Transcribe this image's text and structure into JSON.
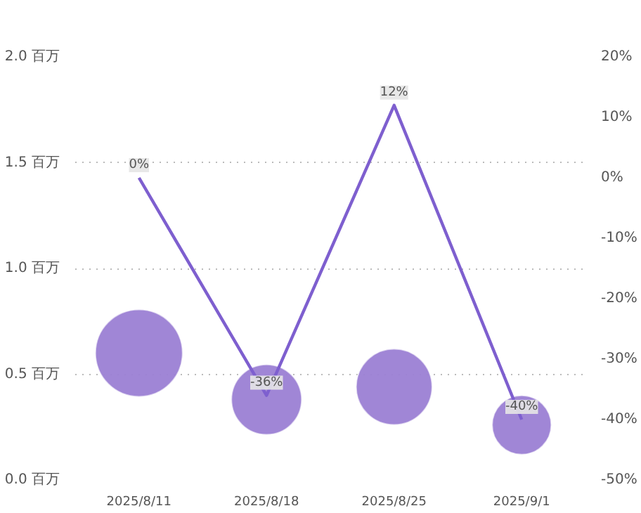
{
  "chart_data": {
    "type": "bubble",
    "categories": [
      "2025/8/11",
      "2025/8/18",
      "2025/8/25",
      "2025/9/1"
    ],
    "series": [
      {
        "color": "#9b7fd4",
        "values": [
          0.6,
          0.38,
          0.44,
          0.26
        ],
        "sizes": [
          1,
          0.65,
          0.76,
          0.46
        ]
      },
      {
        "type": "line",
        "axis": "y2",
        "color": "#7e5fcf",
        "values": [
          0,
          -36,
          12,
          -40
        ],
        "value_labels": [
          "0%",
          "-36%",
          "12%",
          "-40%"
        ]
      }
    ],
    "ylim": [
      0,
      2
    ],
    "yticks": [
      {
        "value": 0,
        "label": "0.0 百万"
      },
      {
        "value": 0.5,
        "label": "0.5 百万"
      },
      {
        "value": 1,
        "label": "1.0 百万"
      },
      {
        "value": 1.5,
        "label": "1.5 百万"
      },
      {
        "value": 2,
        "label": "2.0 百万"
      }
    ],
    "y2lim": [
      -50,
      20
    ],
    "y2ticks": [
      {
        "value": -50,
        "label": "-50%"
      },
      {
        "value": -40,
        "label": "-40%"
      },
      {
        "value": -30,
        "label": "-30%"
      },
      {
        "value": -20,
        "label": "-20%"
      },
      {
        "value": -10,
        "label": "-10%"
      },
      {
        "value": 0,
        "label": "0%"
      },
      {
        "value": 10,
        "label": "10%"
      },
      {
        "value": 20,
        "label": "20%"
      }
    ],
    "grid": "y",
    "line_style": "solid"
  }
}
